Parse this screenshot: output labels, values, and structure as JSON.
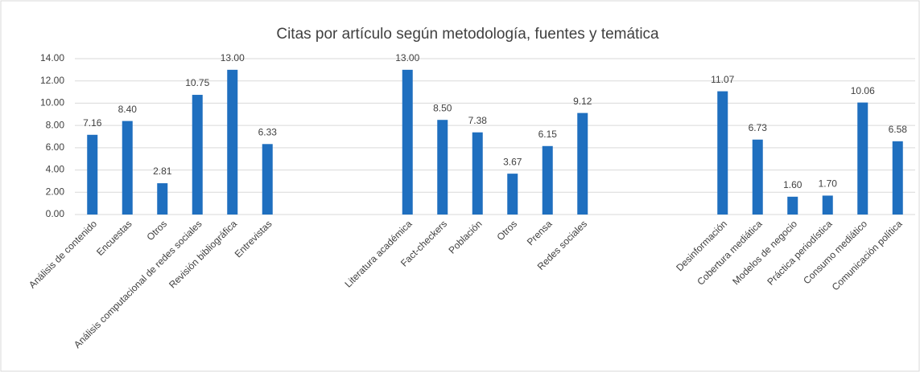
{
  "chart_data": {
    "type": "bar",
    "title": "Citas por artículo según metodología, fuentes y temática",
    "categories": [
      "Análisis de contenido",
      "Encuestas",
      "Otros",
      "Análisis computacional de redes sociales",
      "Revisión bibliográfica",
      "Entrevistas",
      null,
      null,
      null,
      "Literatura académica",
      "Fact-checkers",
      "Población",
      "Otros",
      "Prensa",
      "Redes sociales",
      null,
      null,
      null,
      "Desinformación",
      "Cobertura mediática",
      "Modelos de negocio",
      "Práctica periodística",
      "Consumo mediático",
      "Comunicación política"
    ],
    "values": [
      7.16,
      8.4,
      2.81,
      10.75,
      13,
      6.33,
      null,
      null,
      null,
      13,
      8.5,
      7.38,
      3.67,
      6.15,
      9.12,
      null,
      null,
      null,
      11.07,
      6.73,
      1.6,
      1.7,
      10.06,
      6.58
    ],
    "value_labels": [
      "7.16",
      "8.40",
      "2.81",
      "10.75",
      "13.00",
      "6.33",
      null,
      null,
      null,
      "13.00",
      "8.50",
      "7.38",
      "3.67",
      "6.15",
      "9.12",
      null,
      null,
      null,
      "11.07",
      "6.73",
      "1.60",
      "1.70",
      "10.06",
      "6.58"
    ],
    "color": "#1f6fbf",
    "ylim": [
      0,
      14
    ],
    "yticks": [
      {
        "value": 0,
        "label": "0.00"
      },
      {
        "value": 2,
        "label": "2.00"
      },
      {
        "value": 4,
        "label": "4.00"
      },
      {
        "value": 6,
        "label": "6.00"
      },
      {
        "value": 8,
        "label": "8.00"
      },
      {
        "value": 10,
        "label": "10.00"
      },
      {
        "value": 12,
        "label": "12.00"
      },
      {
        "value": 14,
        "label": "14.00"
      }
    ],
    "grid": true
  }
}
